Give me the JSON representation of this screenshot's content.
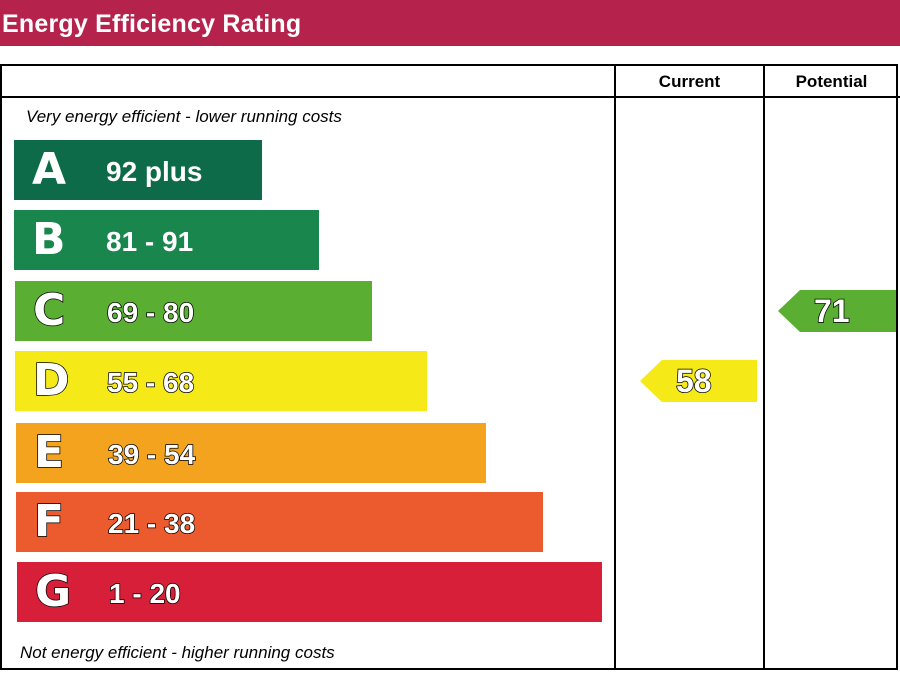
{
  "header": {
    "title": "Energy Efficiency Rating",
    "color": "#b5234c"
  },
  "columns": {
    "current": "Current",
    "potential": "Potential"
  },
  "notes": {
    "top": "Very energy efficient - lower running costs",
    "bottom": "Not energy efficient - higher running costs"
  },
  "chart_data": {
    "type": "bar",
    "title": "Energy Efficiency Rating",
    "categories": [
      "A",
      "B",
      "C",
      "D",
      "E",
      "F",
      "G"
    ],
    "ranges": [
      "92 plus",
      "81 - 91",
      "69 - 80",
      "55 - 68",
      "39 - 54",
      "21 - 38",
      "1 - 20"
    ],
    "colors": [
      "#0d6b4a",
      "#19864d",
      "#5aaf32",
      "#f5ea17",
      "#f4a31f",
      "#ec5b2e",
      "#d81f3a"
    ],
    "outlined_text": [
      false,
      false,
      true,
      true,
      true,
      true,
      true
    ],
    "current": {
      "label": "Current",
      "value": 58,
      "band": "D",
      "color": "#f5ea17"
    },
    "potential": {
      "label": "Potential",
      "value": 71,
      "band": "C",
      "color": "#5aaf32"
    }
  }
}
